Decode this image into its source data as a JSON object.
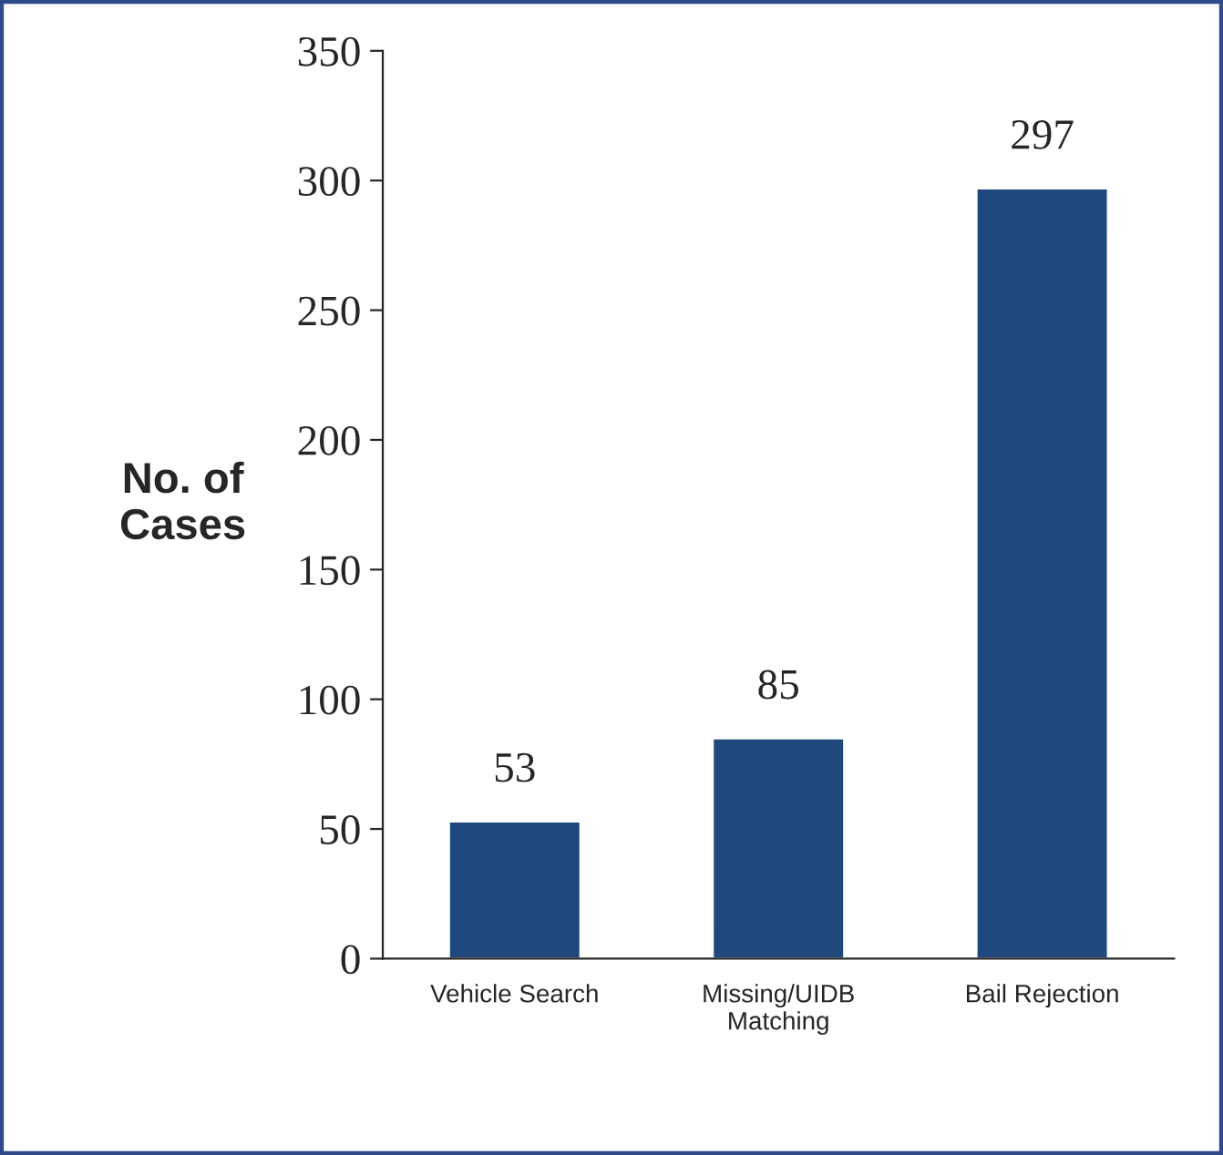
{
  "chart_data": {
    "type": "bar",
    "ylabel": "No. of\nCases",
    "categories": [
      "Vehicle Search",
      "Missing/UIDB\nMatching",
      "Bail Rejection"
    ],
    "values": [
      53,
      85,
      297
    ],
    "color": "#1f497d",
    "ylim": [
      0,
      350
    ],
    "yticks": [
      0,
      50,
      100,
      150,
      200,
      250,
      300,
      350
    ],
    "data_labels": true,
    "grid": false,
    "legend": false
  }
}
